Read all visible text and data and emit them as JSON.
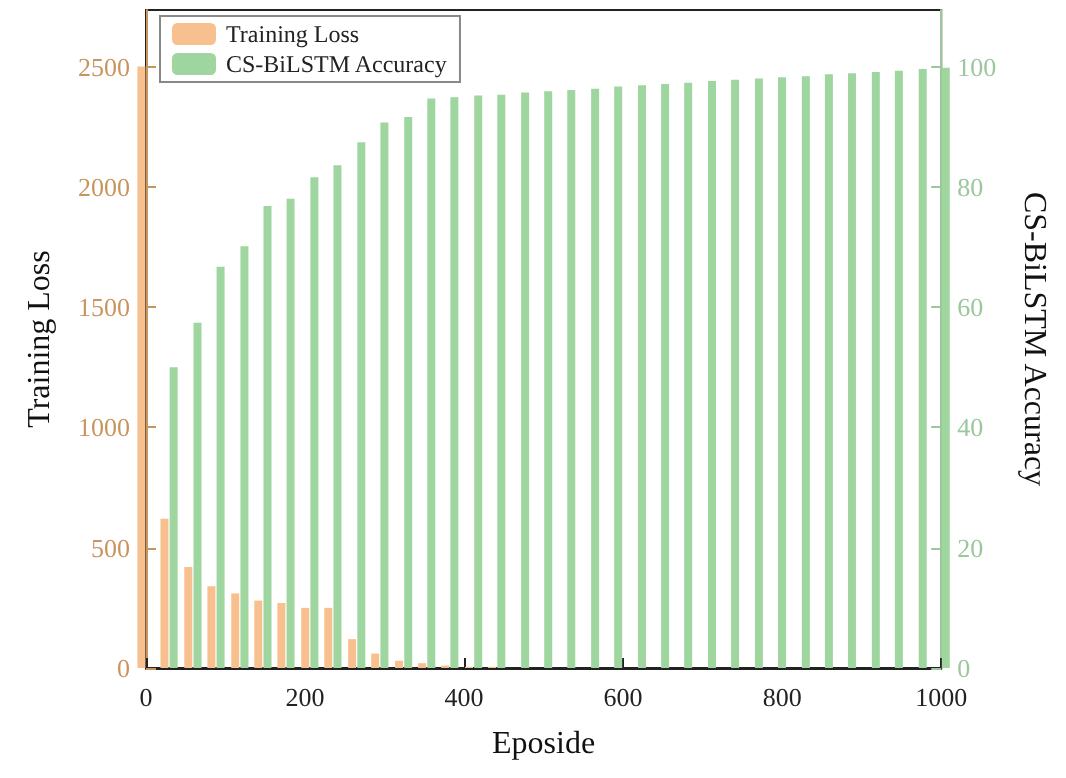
{
  "chart_data": {
    "type": "bar",
    "xlabel": "Eposide",
    "ylabel": "Training Loss",
    "y2label": "CS-BiLSTM Accuracy",
    "x": [
      0,
      29,
      59,
      88,
      118,
      147,
      176,
      206,
      235,
      265,
      294,
      324,
      353,
      382,
      412,
      441,
      471,
      500,
      529,
      559,
      588,
      618,
      647,
      676,
      706,
      735,
      765,
      794,
      824,
      853,
      882,
      912,
      941,
      971,
      1000
    ],
    "series": [
      {
        "name": "Training Loss",
        "color": "#f8c08f",
        "values": [
          2500,
          620,
          420,
          340,
          310,
          280,
          270,
          250,
          250,
          120,
          60,
          30,
          20,
          10,
          5,
          5,
          null,
          null,
          null,
          null,
          null,
          null,
          null,
          null,
          null,
          null,
          null,
          null,
          null,
          null,
          null,
          null,
          null,
          null,
          null
        ]
      },
      {
        "name": "CS-BiLSTM Accuracy",
        "color": "#9fd69f",
        "axis": "y2",
        "values": [
          null,
          50,
          57.4,
          66.7,
          70.1,
          76.8,
          78,
          81.6,
          83.6,
          87.4,
          90.7,
          91.6,
          94.7,
          94.9,
          95.2,
          95.3,
          95.7,
          95.9,
          96.1,
          96.3,
          96.7,
          96.9,
          97.1,
          97.3,
          97.6,
          97.8,
          98,
          98.2,
          98.4,
          98.7,
          98.9,
          99.1,
          99.3,
          99.6,
          99.8
        ]
      }
    ],
    "xlim": [
      0,
      1000
    ],
    "xticks": [
      0,
      200,
      400,
      600,
      800,
      1000
    ],
    "ylim": [
      0,
      2735
    ],
    "yticks": [
      0,
      500,
      1000,
      1500,
      2000,
      2500
    ],
    "y2lim": [
      0,
      109.4
    ],
    "y2ticks": [
      0,
      20,
      40,
      60,
      80,
      100
    ],
    "legend": "top left",
    "grid": false
  }
}
